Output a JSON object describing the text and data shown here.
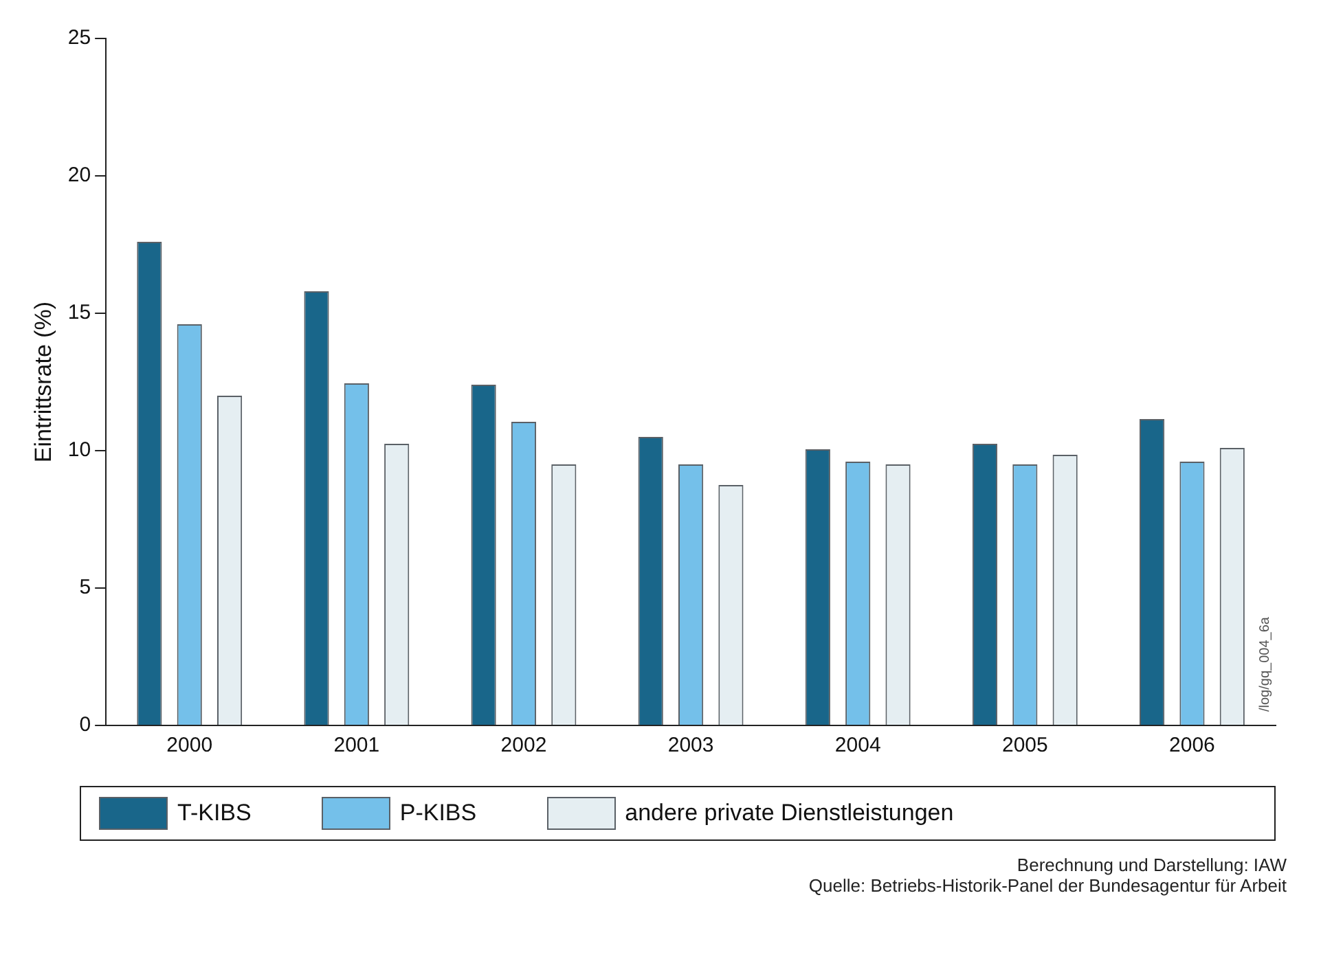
{
  "chart_data": {
    "type": "bar",
    "ylabel": "Eintrittsrate (%)",
    "categories": [
      "2000",
      "2001",
      "2002",
      "2003",
      "2004",
      "2005",
      "2006"
    ],
    "series": [
      {
        "name": "T-KIBS",
        "color": "#19668a",
        "values": [
          17.6,
          15.8,
          12.4,
          10.5,
          10.05,
          10.25,
          11.15
        ]
      },
      {
        "name": "P-KIBS",
        "color": "#74c0ea",
        "values": [
          14.6,
          12.45,
          11.05,
          9.5,
          9.6,
          9.5,
          9.6
        ]
      },
      {
        "name": "andere private Dienstleistungen",
        "color": "#e5eef2",
        "values": [
          12.0,
          10.25,
          9.5,
          8.75,
          9.5,
          9.85,
          10.1
        ]
      }
    ],
    "ylim": [
      0,
      25
    ],
    "yticks": [
      0,
      5,
      10,
      15,
      20,
      25
    ],
    "grid": false,
    "legend": "bottom",
    "annotations": [
      "/log/gq_004_6a",
      "Berechnung und Darstellung: IAW",
      "Quelle: Betriebs-Historik-Panel der Bundesagentur für Arbeit"
    ]
  }
}
